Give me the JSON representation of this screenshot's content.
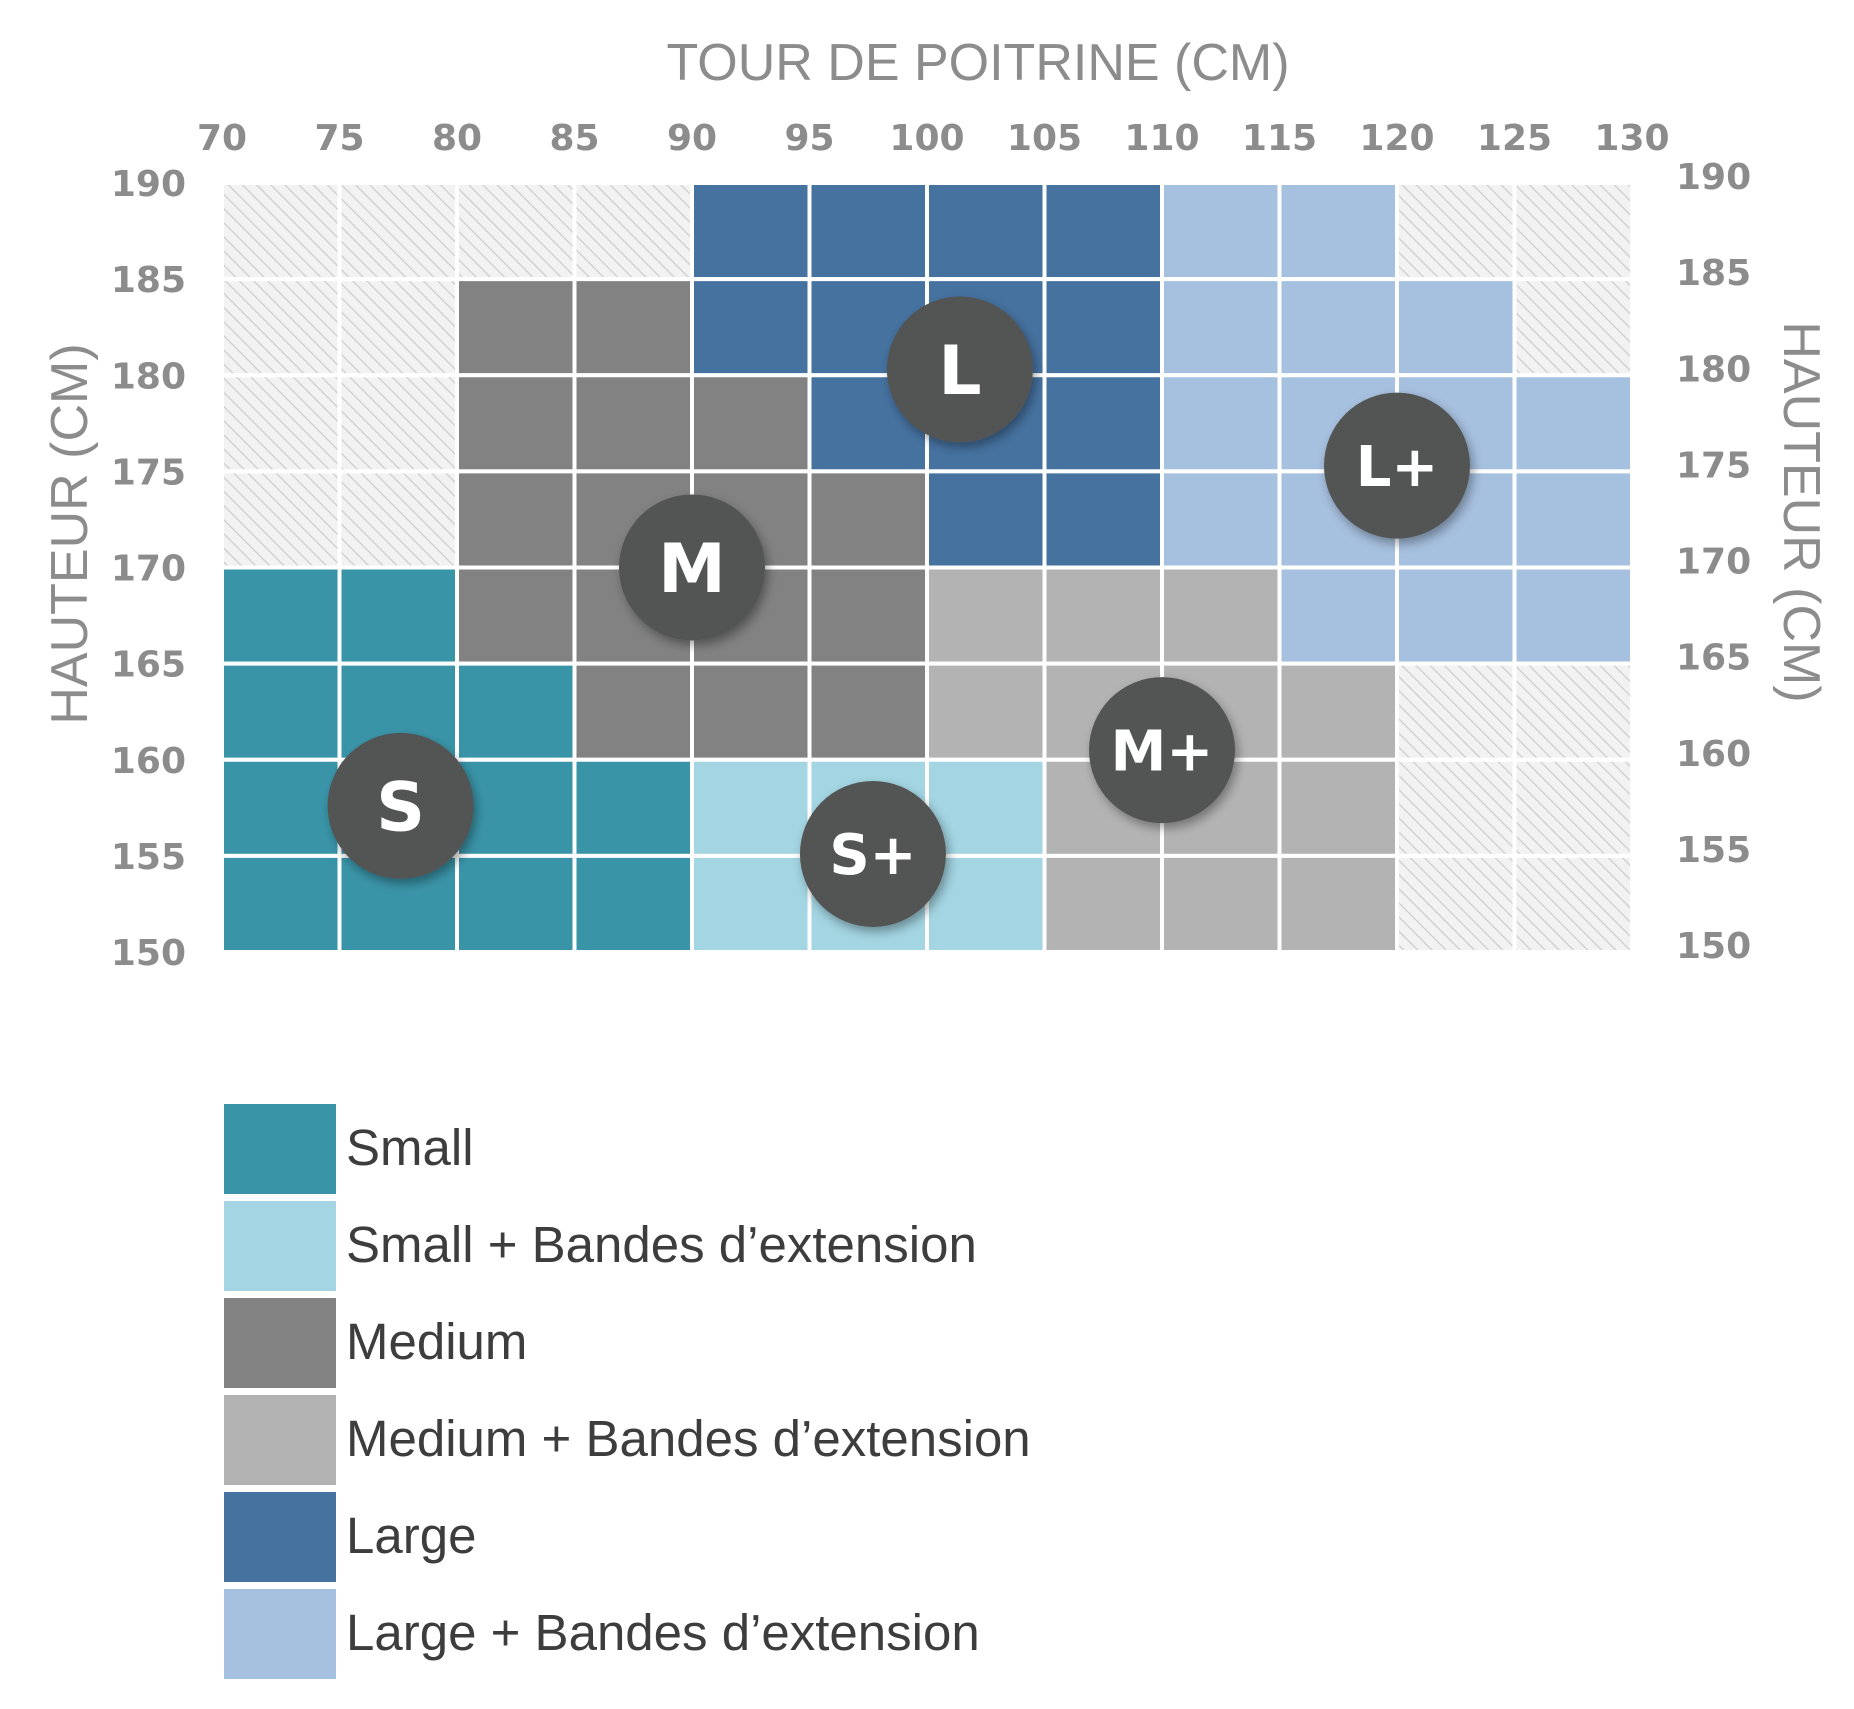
{
  "chart_data": {
    "type": "heatmap",
    "title": "",
    "xlabel": "TOUR DE POITRINE (CM)",
    "ylabel": "HAUTEUR (CM)",
    "ylabel_right": "HAUTEUR (CM)",
    "x_ticks": [
      70,
      75,
      80,
      85,
      90,
      95,
      100,
      105,
      110,
      115,
      120,
      125,
      130
    ],
    "y_ticks": [
      150,
      155,
      160,
      165,
      170,
      175,
      180,
      185,
      190
    ],
    "xlim": [
      70,
      130
    ],
    "ylim": [
      150,
      190
    ],
    "cell_size": {
      "x": 5,
      "y": 5
    },
    "row_bins": [
      "190-185",
      "185-180",
      "180-175",
      "175-170",
      "170-165",
      "165-160",
      "160-155",
      "155-150"
    ],
    "column_bins": [
      "70-75",
      "75-80",
      "80-85",
      "85-90",
      "90-95",
      "95-100",
      "100-105",
      "105-110",
      "110-115",
      "115-120",
      "120-125",
      "125-130"
    ],
    "grid_rows_top_to_bottom": [
      [
        "N",
        "N",
        "N",
        "N",
        "L",
        "L",
        "L",
        "L",
        "L+",
        "L+",
        "N",
        "N"
      ],
      [
        "N",
        "N",
        "M",
        "M",
        "L",
        "L",
        "L",
        "L",
        "L+",
        "L+",
        "L+",
        "N"
      ],
      [
        "N",
        "N",
        "M",
        "M",
        "M",
        "L",
        "L",
        "L",
        "L+",
        "L+",
        "L+",
        "L+"
      ],
      [
        "N",
        "N",
        "M",
        "M",
        "M",
        "M",
        "L",
        "L",
        "L+",
        "L+",
        "L+",
        "L+"
      ],
      [
        "S",
        "S",
        "M",
        "M",
        "M",
        "M",
        "M+",
        "M+",
        "M+",
        "L+",
        "L+",
        "L+"
      ],
      [
        "S",
        "S",
        "S",
        "M",
        "M",
        "M",
        "M+",
        "M+",
        "M+",
        "M+",
        "N",
        "N"
      ],
      [
        "S",
        "S",
        "S",
        "S",
        "S+",
        "S+",
        "S+",
        "M+",
        "M+",
        "M+",
        "N",
        "N"
      ],
      [
        "S",
        "S",
        "S",
        "S",
        "S+",
        "S+",
        "S+",
        "M+",
        "M+",
        "M+",
        "N",
        "N"
      ]
    ],
    "categories": {
      "S": {
        "name": "Small",
        "color": "#3a94a8"
      },
      "S+": {
        "name": "Small + Bandes d’extension",
        "color": "#a3d5e2"
      },
      "M": {
        "name": "Medium",
        "color": "#828282"
      },
      "M+": {
        "name": "Medium + Bandes d’extension",
        "color": "#b3b3b3"
      },
      "L": {
        "name": "Large",
        "color": "#4672a0"
      },
      "L+": {
        "name": "Large + Bandes d’extension",
        "color": "#a6c0df"
      }
    },
    "not_applicable_fill": "hatched light grey",
    "badges": [
      {
        "label": "S",
        "x": 77.6,
        "y": 157.6
      },
      {
        "label": "S+",
        "x": 97.7,
        "y": 155.1
      },
      {
        "label": "M",
        "x": 90.0,
        "y": 170.0
      },
      {
        "label": "M+",
        "x": 110.0,
        "y": 160.5
      },
      {
        "label": "L",
        "x": 101.4,
        "y": 180.3
      },
      {
        "label": "L+",
        "x": 120.0,
        "y": 175.3
      }
    ],
    "legend": [
      {
        "label": "Small",
        "color": "#3a94a8"
      },
      {
        "label": "Small + Bandes d’extension",
        "color": "#a3d5e2"
      },
      {
        "label": "Medium",
        "color": "#828282"
      },
      {
        "label": "Medium + Bandes d’extension",
        "color": "#b3b3b3"
      },
      {
        "label": "Large",
        "color": "#4672a0"
      },
      {
        "label": "Large + Bandes d’extension",
        "color": "#a6c0df"
      }
    ],
    "legend_position": "bottom-left",
    "badge_color": "#525454",
    "axis_text_color": "#8c8c8c"
  }
}
